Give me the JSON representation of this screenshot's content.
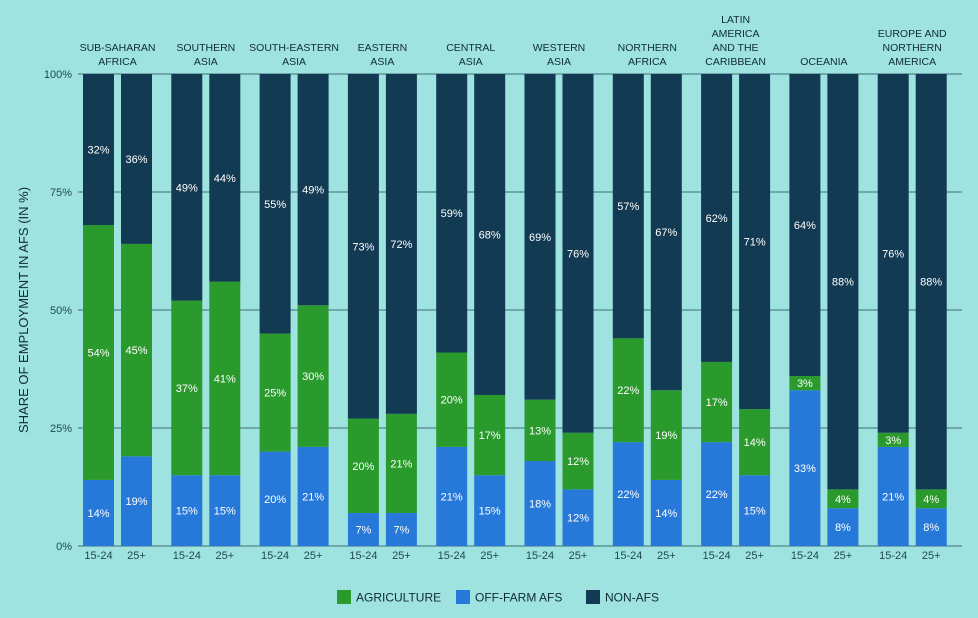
{
  "chart_data": {
    "type": "bar",
    "stacked": true,
    "title": "",
    "ylabel": "SHARE OF EMPLOYMENT IN AFS (IN %)",
    "xlabel": "",
    "ylim": [
      0,
      100
    ],
    "y_ticks": [
      "0%",
      "25%",
      "50%",
      "75%",
      "100%"
    ],
    "grid": true,
    "legend_position": "bottom-center",
    "groups": [
      {
        "name": [
          "SUB-SAHARAN",
          "AFRICA"
        ],
        "bars": [
          {
            "label": "15-24",
            "values": [
              54,
              14,
              32
            ],
            "value_labels": [
              "54%",
              "14%",
              "32%"
            ]
          },
          {
            "label": "25+",
            "values": [
              45,
              19,
              36
            ],
            "value_labels": [
              "45%",
              "19%",
              "36%"
            ]
          }
        ]
      },
      {
        "name": [
          "SOUTHERN",
          "ASIA"
        ],
        "bars": [
          {
            "label": "15-24",
            "values": [
              37,
              15,
              49
            ],
            "value_labels": [
              "37%",
              "15%",
              "49%"
            ]
          },
          {
            "label": "25+",
            "values": [
              41,
              15,
              44
            ],
            "value_labels": [
              "41%",
              "15%",
              "44%"
            ]
          }
        ]
      },
      {
        "name": [
          "SOUTH-EASTERN",
          "ASIA"
        ],
        "bars": [
          {
            "label": "15-24",
            "values": [
              25,
              20,
              55
            ],
            "value_labels": [
              "25%",
              "20%",
              "55%"
            ]
          },
          {
            "label": "25+",
            "values": [
              30,
              21,
              49
            ],
            "value_labels": [
              "30%",
              "21%",
              "49%"
            ]
          }
        ]
      },
      {
        "name": [
          "EASTERN",
          "ASIA"
        ],
        "bars": [
          {
            "label": "15-24",
            "values": [
              20,
              7,
              73
            ],
            "value_labels": [
              "20%",
              "7%",
              "73%"
            ]
          },
          {
            "label": "25+",
            "values": [
              21,
              7,
              72
            ],
            "value_labels": [
              "21%",
              "7%",
              "72%"
            ]
          }
        ]
      },
      {
        "name": [
          "CENTRAL",
          "ASIA"
        ],
        "bars": [
          {
            "label": "15-24",
            "values": [
              20,
              21,
              59
            ],
            "value_labels": [
              "20%",
              "21%",
              "59%"
            ]
          },
          {
            "label": "25+",
            "values": [
              17,
              15,
              68
            ],
            "value_labels": [
              "17%",
              "15%",
              "68%"
            ]
          }
        ]
      },
      {
        "name": [
          "WESTERN",
          "ASIA"
        ],
        "bars": [
          {
            "label": "15-24",
            "values": [
              13,
              18,
              69
            ],
            "value_labels": [
              "13%",
              "18%",
              "69%"
            ]
          },
          {
            "label": "25+",
            "values": [
              12,
              12,
              76
            ],
            "value_labels": [
              "12%",
              "12%",
              "76%"
            ]
          }
        ]
      },
      {
        "name": [
          "NORTHERN",
          "AFRICA"
        ],
        "bars": [
          {
            "label": "15-24",
            "values": [
              22,
              22,
              57
            ],
            "value_labels": [
              "22%",
              "22%",
              "57%"
            ]
          },
          {
            "label": "25+",
            "values": [
              19,
              14,
              67
            ],
            "value_labels": [
              "19%",
              "14%",
              "67%"
            ]
          }
        ]
      },
      {
        "name": [
          "LATIN",
          "AMERICA",
          "AND THE",
          "CARIBBEAN"
        ],
        "bars": [
          {
            "label": "15-24",
            "values": [
              17,
              22,
              62
            ],
            "value_labels": [
              "17%",
              "22%",
              "62%"
            ]
          },
          {
            "label": "25+",
            "values": [
              14,
              15,
              71
            ],
            "value_labels": [
              "14%",
              "15%",
              "71%"
            ]
          }
        ]
      },
      {
        "name": [
          "OCEANIA"
        ],
        "bars": [
          {
            "label": "15-24",
            "values": [
              3,
              33,
              64
            ],
            "value_labels": [
              "3%",
              "33%",
              "64%"
            ]
          },
          {
            "label": "25+",
            "values": [
              4,
              8,
              88
            ],
            "value_labels": [
              "4%",
              "8%",
              "88%"
            ]
          }
        ]
      },
      {
        "name": [
          "EUROPE AND",
          "NORTHERN",
          "AMERICA"
        ],
        "bars": [
          {
            "label": "15-24",
            "values": [
              3,
              21,
              76
            ],
            "value_labels": [
              "3%",
              "21%",
              "76%"
            ]
          },
          {
            "label": "25+",
            "values": [
              4,
              8,
              88
            ],
            "value_labels": [
              "4%",
              "8%",
              "88%"
            ]
          }
        ]
      }
    ],
    "series": [
      {
        "name": "AGRICULTURE",
        "color": "#2a9a2c"
      },
      {
        "name": "OFF-FARM AFS",
        "color": "#2779d9"
      },
      {
        "name": "NON-AFS",
        "color": "#123a52"
      }
    ]
  }
}
